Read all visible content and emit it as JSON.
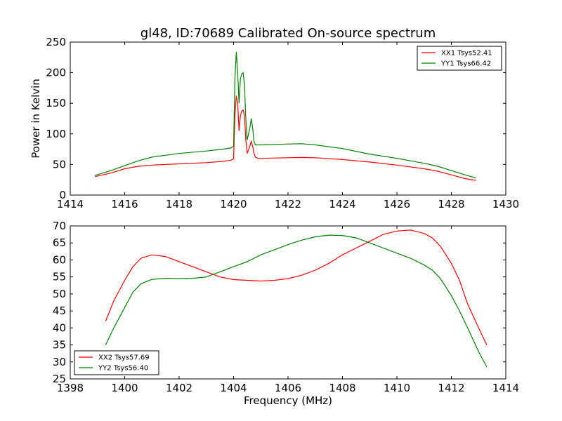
{
  "title": "gl48, ID:70689 Calibrated On-source spectrum",
  "colors": {
    "red": "#ff0000",
    "green": "#007f00",
    "axes": "#000000",
    "background": "#ffffff"
  },
  "chart_data": [
    {
      "type": "line",
      "title": "gl48, ID:70689 Calibrated On-source spectrum",
      "xlabel": "",
      "ylabel": "Power in Kelvin",
      "xlim": [
        1414,
        1430
      ],
      "ylim": [
        0,
        250
      ],
      "xticks": [
        1414,
        1416,
        1418,
        1420,
        1422,
        1424,
        1426,
        1428,
        1430
      ],
      "yticks": [
        0,
        50,
        100,
        150,
        200,
        250
      ],
      "legend": "top-right",
      "grid": false,
      "series": [
        {
          "name": "XX1 Tsys52.41",
          "color": "#ff0000",
          "x": [
            1414.9,
            1415.5,
            1416.0,
            1416.5,
            1417.0,
            1418.0,
            1419.0,
            1419.6,
            1419.9,
            1420.0,
            1420.05,
            1420.1,
            1420.15,
            1420.2,
            1420.25,
            1420.3,
            1420.35,
            1420.4,
            1420.45,
            1420.5,
            1420.6,
            1420.65,
            1420.7,
            1420.75,
            1420.8,
            1420.9,
            1421.0,
            1421.5,
            1422.0,
            1422.5,
            1423.0,
            1424.0,
            1425.0,
            1426.0,
            1427.0,
            1427.5,
            1428.0,
            1428.5,
            1428.9
          ],
          "y": [
            30,
            36,
            43,
            47,
            49,
            51,
            53,
            55,
            57,
            59,
            130,
            162,
            150,
            105,
            130,
            137,
            139,
            130,
            90,
            68,
            80,
            88,
            80,
            68,
            62,
            60,
            60,
            60.5,
            61,
            61.5,
            61,
            58,
            54,
            49,
            43,
            39,
            33,
            27,
            24
          ]
        },
        {
          "name": "YY1 Tsys66.42",
          "color": "#007f00",
          "x": [
            1414.9,
            1415.5,
            1416.0,
            1416.5,
            1417.0,
            1418.0,
            1419.0,
            1419.6,
            1419.9,
            1420.0,
            1420.05,
            1420.1,
            1420.15,
            1420.2,
            1420.25,
            1420.3,
            1420.35,
            1420.4,
            1420.45,
            1420.5,
            1420.6,
            1420.65,
            1420.7,
            1420.75,
            1420.8,
            1420.9,
            1421.0,
            1421.5,
            1422.0,
            1422.5,
            1423.0,
            1424.0,
            1425.0,
            1426.0,
            1427.0,
            1427.5,
            1428.0,
            1428.5,
            1428.9
          ],
          "y": [
            32,
            40,
            48,
            56,
            62,
            68,
            72,
            75,
            77,
            80,
            190,
            234,
            200,
            150,
            190,
            198,
            200,
            180,
            125,
            90,
            110,
            125,
            110,
            88,
            82,
            82,
            82,
            82.5,
            83.5,
            84,
            82,
            76,
            67,
            60,
            52,
            47,
            40,
            33,
            28
          ]
        }
      ]
    },
    {
      "type": "line",
      "title": "",
      "xlabel": "Frequency (MHz)",
      "ylabel": "",
      "xlim": [
        1398,
        1414
      ],
      "ylim": [
        25,
        70
      ],
      "xticks": [
        1398,
        1400,
        1402,
        1404,
        1406,
        1408,
        1410,
        1412,
        1414
      ],
      "yticks": [
        25,
        30,
        35,
        40,
        45,
        50,
        55,
        60,
        65,
        70
      ],
      "legend": "bottom-left",
      "grid": false,
      "series": [
        {
          "name": "XX2 Tsys57.69",
          "color": "#ff0000",
          "x": [
            1399.3,
            1399.6,
            1400.0,
            1400.3,
            1400.6,
            1401.0,
            1401.5,
            1402.0,
            1402.5,
            1403.0,
            1403.5,
            1404.0,
            1404.5,
            1405.0,
            1405.5,
            1406.0,
            1406.5,
            1407.0,
            1407.5,
            1408.0,
            1408.5,
            1409.0,
            1409.5,
            1410.0,
            1410.5,
            1411.0,
            1411.3,
            1411.6,
            1412.0,
            1412.3,
            1412.6,
            1413.0,
            1413.3
          ],
          "y": [
            42,
            48,
            54,
            58,
            60.5,
            61.5,
            61,
            59.5,
            58,
            56.5,
            55,
            54.2,
            54,
            53.8,
            54,
            54.5,
            55.5,
            57,
            59,
            61.5,
            63.5,
            65.5,
            67.5,
            68.5,
            68.8,
            67.8,
            66.5,
            64,
            59,
            54,
            47,
            40,
            35
          ]
        },
        {
          "name": "YY2 Tsys56.40",
          "color": "#007f00",
          "x": [
            1399.3,
            1399.6,
            1400.0,
            1400.3,
            1400.6,
            1401.0,
            1401.5,
            1402.0,
            1402.5,
            1403.0,
            1403.5,
            1404.0,
            1404.5,
            1405.0,
            1405.5,
            1406.0,
            1406.5,
            1407.0,
            1407.5,
            1408.0,
            1408.5,
            1409.0,
            1409.5,
            1410.0,
            1410.5,
            1411.0,
            1411.3,
            1411.6,
            1412.0,
            1412.3,
            1412.6,
            1413.0,
            1413.3
          ],
          "y": [
            35,
            40,
            46,
            50.5,
            53,
            54.3,
            54.6,
            54.5,
            54.6,
            55,
            56.5,
            58,
            59.5,
            61.5,
            63,
            64.5,
            65.8,
            66.8,
            67.3,
            67.2,
            66.5,
            65,
            63.5,
            62,
            60.5,
            58.5,
            57,
            54.5,
            49.5,
            45,
            40,
            33,
            28.5
          ]
        }
      ]
    }
  ]
}
